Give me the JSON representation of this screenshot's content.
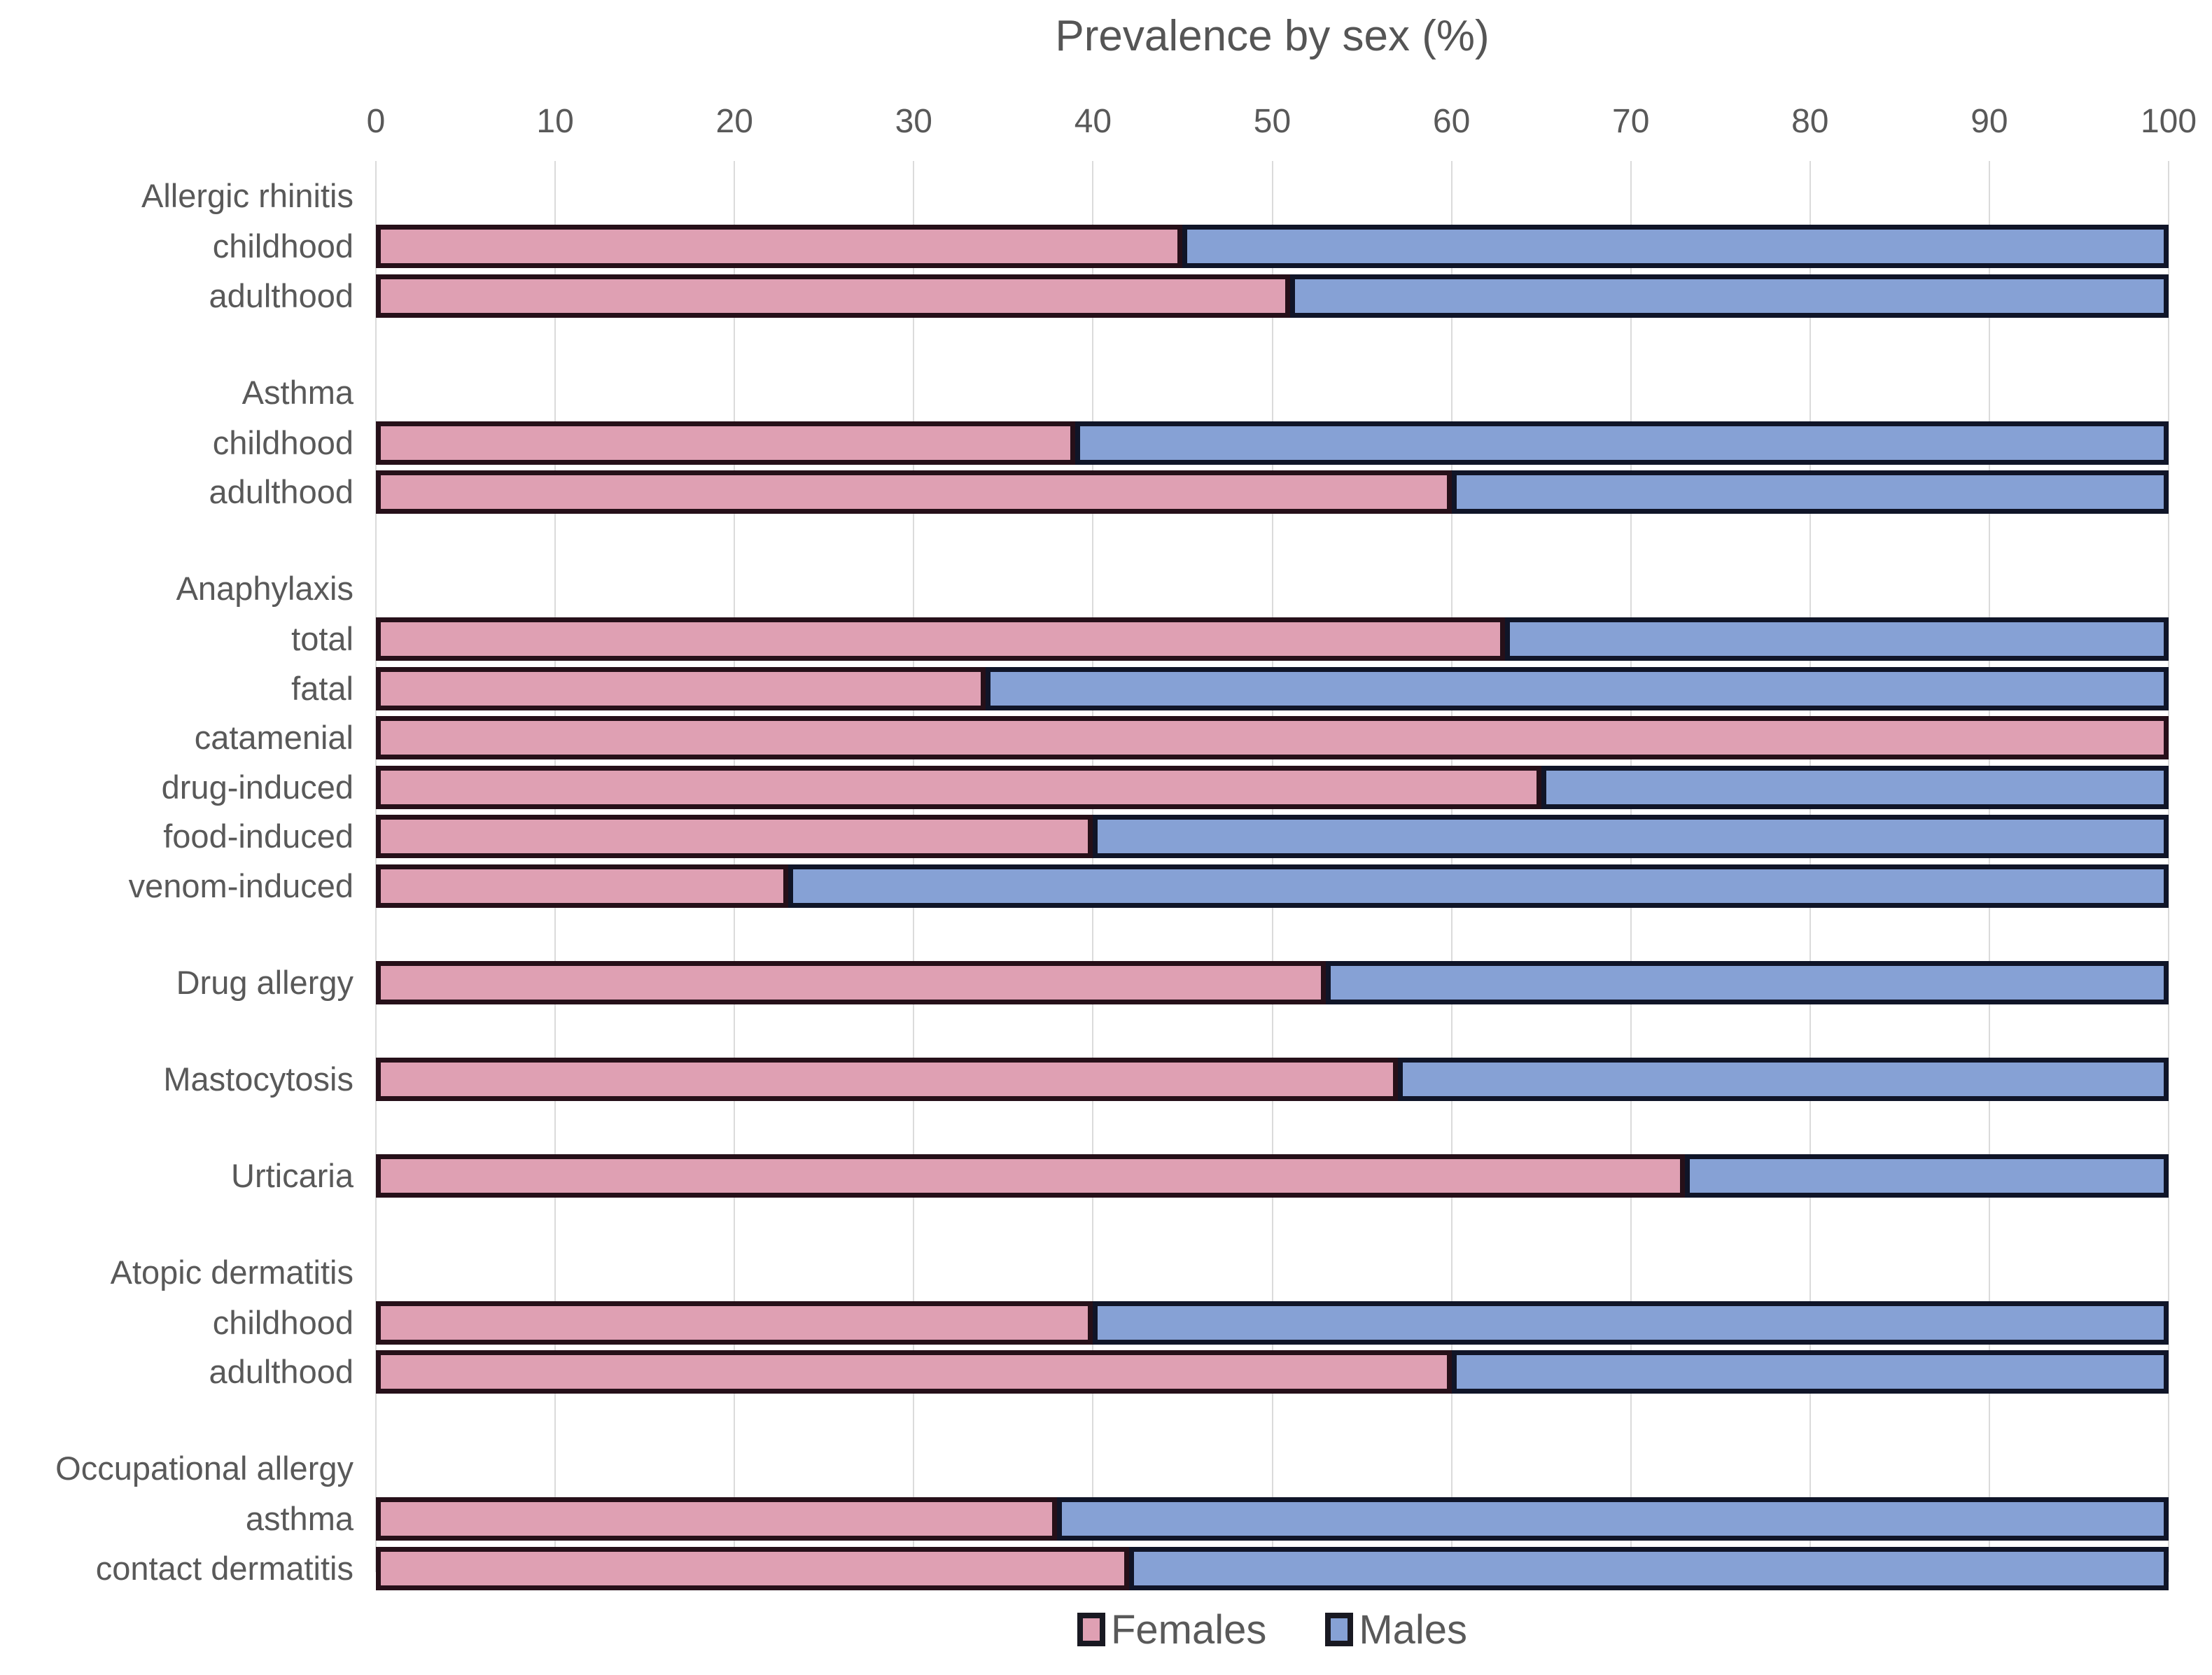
{
  "title": "Prevalence by sex (%)",
  "legend": [
    {
      "label": "Females",
      "color": "#dfa0b3"
    },
    {
      "label": "Males",
      "color": "#86a1d5"
    }
  ],
  "colors": {
    "females_fill": "#dfa0b3",
    "males_fill": "#86a1d5",
    "bar_border": "#191922",
    "gridline": "#dbdbdb",
    "text": "#595959"
  },
  "chart_data": {
    "type": "bar",
    "orientation": "horizontal",
    "stacked": true,
    "title": "Prevalence by sex (%)",
    "xlabel": "",
    "ylabel": "",
    "x_axis": {
      "min": 0,
      "max": 100,
      "tick_interval": 10,
      "tick_labels": [
        "0",
        "10",
        "20",
        "30",
        "40",
        "50",
        "60",
        "70",
        "80",
        "90",
        "100"
      ]
    },
    "grid": true,
    "legend_position": "bottom",
    "series_names": [
      "Females",
      "Males"
    ],
    "groups": [
      {
        "header": "Allergic rhinitis",
        "rows": [
          {
            "label": "childhood",
            "females": 45,
            "males": 55
          },
          {
            "label": "adulthood",
            "females": 51,
            "males": 49
          }
        ]
      },
      {
        "header": "Asthma",
        "rows": [
          {
            "label": "childhood",
            "females": 39,
            "males": 61
          },
          {
            "label": "adulthood",
            "females": 60,
            "males": 40
          }
        ]
      },
      {
        "header": "Anaphylaxis",
        "rows": [
          {
            "label": "total",
            "females": 63,
            "males": 37
          },
          {
            "label": "fatal",
            "females": 34,
            "males": 66
          },
          {
            "label": "catamenial",
            "females": 100,
            "males": 0
          },
          {
            "label": "drug-induced",
            "females": 65,
            "males": 35
          },
          {
            "label": "food-induced",
            "females": 40,
            "males": 60
          },
          {
            "label": "venom-induced",
            "females": 23,
            "males": 77
          }
        ]
      },
      {
        "header": null,
        "rows": [
          {
            "label": "Drug allergy",
            "females": 53,
            "males": 47
          }
        ]
      },
      {
        "header": null,
        "rows": [
          {
            "label": "Mastocytosis",
            "females": 57,
            "males": 43
          }
        ]
      },
      {
        "header": null,
        "rows": [
          {
            "label": "Urticaria",
            "females": 73,
            "males": 27
          }
        ]
      },
      {
        "header": "Atopic dermatitis",
        "rows": [
          {
            "label": "childhood",
            "females": 40,
            "males": 60
          },
          {
            "label": "adulthood",
            "females": 60,
            "males": 40
          }
        ]
      },
      {
        "header": "Occupational allergy",
        "rows": [
          {
            "label": "asthma",
            "females": 38,
            "males": 62
          },
          {
            "label": "contact dermatitis",
            "females": 42,
            "males": 58
          }
        ]
      }
    ]
  }
}
